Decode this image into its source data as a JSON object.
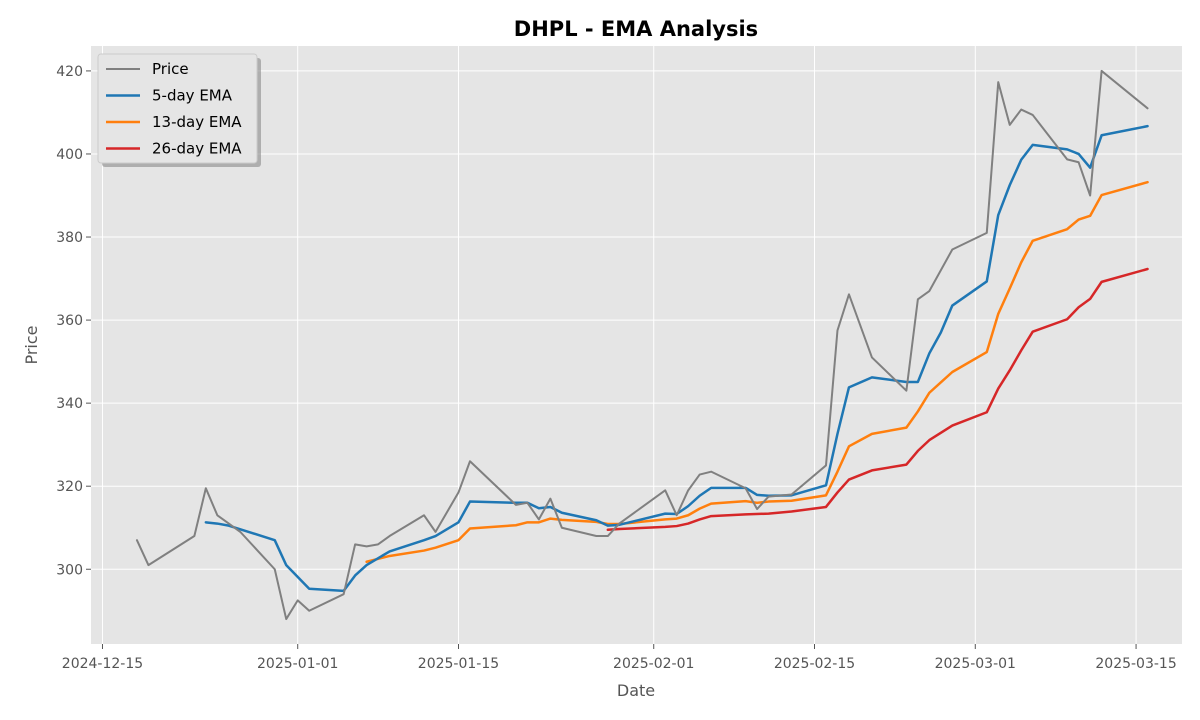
{
  "chart_data": {
    "type": "line",
    "title": "DHPL - EMA Analysis",
    "xlabel": "Date",
    "ylabel": "Price",
    "x_type": "date",
    "xlim": [
      "2024-12-14",
      "2025-03-19"
    ],
    "ylim": [
      282,
      426
    ],
    "x_ticks": [
      "2024-12-15",
      "2025-01-01",
      "2025-01-15",
      "2025-02-01",
      "2025-02-15",
      "2025-03-01",
      "2025-03-15"
    ],
    "y_ticks": [
      300,
      320,
      340,
      360,
      380,
      400,
      420
    ],
    "grid": true,
    "legend_position": "top-left",
    "series": [
      {
        "name": "Price",
        "color": "#808080",
        "points": [
          [
            "2024-12-18",
            307.0
          ],
          [
            "2024-12-19",
            301.0
          ],
          [
            "2024-12-23",
            308.0
          ],
          [
            "2024-12-24",
            319.5
          ],
          [
            "2024-12-25",
            313.0
          ],
          [
            "2024-12-26",
            311.0
          ],
          [
            "2024-12-27",
            309.0
          ],
          [
            "2024-12-30",
            300.0
          ],
          [
            "2024-12-31",
            288.0
          ],
          [
            "2025-01-01",
            292.5
          ],
          [
            "2025-01-02",
            290.0
          ],
          [
            "2025-01-05",
            294.0
          ],
          [
            "2025-01-06",
            306.0
          ],
          [
            "2025-01-07",
            305.5
          ],
          [
            "2025-01-08",
            306.0
          ],
          [
            "2025-01-09",
            308.0
          ],
          [
            "2025-01-12",
            313.0
          ],
          [
            "2025-01-13",
            309.0
          ],
          [
            "2025-01-15",
            318.5
          ],
          [
            "2025-01-16",
            326.0
          ],
          [
            "2025-01-20",
            315.5
          ],
          [
            "2025-01-21",
            316.0
          ],
          [
            "2025-01-22",
            312.0
          ],
          [
            "2025-01-23",
            317.0
          ],
          [
            "2025-01-24",
            310.0
          ],
          [
            "2025-01-27",
            308.0
          ],
          [
            "2025-01-28",
            308.0
          ],
          [
            "2025-01-29",
            311.0
          ],
          [
            "2025-02-02",
            319.0
          ],
          [
            "2025-02-03",
            313.0
          ],
          [
            "2025-02-04",
            319.0
          ],
          [
            "2025-02-05",
            322.8
          ],
          [
            "2025-02-06",
            323.5
          ],
          [
            "2025-02-09",
            319.5
          ],
          [
            "2025-02-10",
            314.5
          ],
          [
            "2025-02-11",
            317.5
          ],
          [
            "2025-02-13",
            318.0
          ],
          [
            "2025-02-16",
            325.0
          ],
          [
            "2025-02-17",
            357.5
          ],
          [
            "2025-02-18",
            366.2
          ],
          [
            "2025-02-20",
            351.0
          ],
          [
            "2025-02-23",
            343.0
          ],
          [
            "2025-02-24",
            365.0
          ],
          [
            "2025-02-25",
            367.0
          ],
          [
            "2025-02-27",
            377.0
          ],
          [
            "2025-03-02",
            381.0
          ],
          [
            "2025-03-03",
            417.3
          ],
          [
            "2025-03-04",
            407.0
          ],
          [
            "2025-03-05",
            410.7
          ],
          [
            "2025-03-06",
            409.4
          ],
          [
            "2025-03-09",
            398.7
          ],
          [
            "2025-03-10",
            398.0
          ],
          [
            "2025-03-11",
            390.0
          ],
          [
            "2025-03-12",
            420.0
          ],
          [
            "2025-03-16",
            411.0
          ]
        ]
      },
      {
        "name": "5-day EMA",
        "color": "#1f77b4",
        "points": [
          [
            "2024-12-24",
            311.3
          ],
          [
            "2024-12-25",
            311.0
          ],
          [
            "2024-12-26",
            310.5
          ],
          [
            "2024-12-30",
            307.0
          ],
          [
            "2024-12-31",
            301.0
          ],
          [
            "2025-01-02",
            295.3
          ],
          [
            "2025-01-05",
            294.8
          ],
          [
            "2025-01-06",
            298.5
          ],
          [
            "2025-01-07",
            301.0
          ],
          [
            "2025-01-09",
            304.3
          ],
          [
            "2025-01-12",
            307.0
          ],
          [
            "2025-01-13",
            308.0
          ],
          [
            "2025-01-15",
            311.3
          ],
          [
            "2025-01-16",
            316.3
          ],
          [
            "2025-01-20",
            316.0
          ],
          [
            "2025-01-21",
            316.0
          ],
          [
            "2025-01-22",
            314.7
          ],
          [
            "2025-01-23",
            315.0
          ],
          [
            "2025-01-24",
            313.6
          ],
          [
            "2025-01-27",
            311.8
          ],
          [
            "2025-01-28",
            310.5
          ],
          [
            "2025-01-29",
            310.7
          ],
          [
            "2025-02-02",
            313.4
          ],
          [
            "2025-02-03",
            313.3
          ],
          [
            "2025-02-04",
            315.2
          ],
          [
            "2025-02-05",
            317.7
          ],
          [
            "2025-02-06",
            319.6
          ],
          [
            "2025-02-09",
            319.6
          ],
          [
            "2025-02-10",
            317.9
          ],
          [
            "2025-02-11",
            317.7
          ],
          [
            "2025-02-13",
            317.8
          ],
          [
            "2025-02-16",
            320.2
          ],
          [
            "2025-02-17",
            332.6
          ],
          [
            "2025-02-18",
            343.8
          ],
          [
            "2025-02-20",
            346.2
          ],
          [
            "2025-02-23",
            345.1
          ],
          [
            "2025-02-24",
            345.1
          ],
          [
            "2025-02-25",
            352.0
          ],
          [
            "2025-02-26",
            357.0
          ],
          [
            "2025-02-27",
            363.5
          ],
          [
            "2025-03-02",
            369.3
          ],
          [
            "2025-03-03",
            385.3
          ],
          [
            "2025-03-04",
            392.5
          ],
          [
            "2025-03-05",
            398.6
          ],
          [
            "2025-03-06",
            402.2
          ],
          [
            "2025-03-09",
            401.1
          ],
          [
            "2025-03-10",
            400.0
          ],
          [
            "2025-03-11",
            396.7
          ],
          [
            "2025-03-12",
            404.5
          ],
          [
            "2025-03-16",
            406.7
          ]
        ]
      },
      {
        "name": "13-day EMA",
        "color": "#ff7f0e",
        "points": [
          [
            "2025-01-07",
            301.8
          ],
          [
            "2025-01-09",
            303.2
          ],
          [
            "2025-01-12",
            304.5
          ],
          [
            "2025-01-13",
            305.2
          ],
          [
            "2025-01-15",
            307.0
          ],
          [
            "2025-01-16",
            309.8
          ],
          [
            "2025-01-20",
            310.6
          ],
          [
            "2025-01-21",
            311.3
          ],
          [
            "2025-01-22",
            311.3
          ],
          [
            "2025-01-23",
            312.2
          ],
          [
            "2025-01-24",
            311.9
          ],
          [
            "2025-01-27",
            311.4
          ],
          [
            "2025-01-28",
            310.9
          ],
          [
            "2025-01-29",
            310.9
          ],
          [
            "2025-02-02",
            312.0
          ],
          [
            "2025-02-03",
            312.2
          ],
          [
            "2025-02-04",
            313.0
          ],
          [
            "2025-02-05",
            314.6
          ],
          [
            "2025-02-06",
            315.8
          ],
          [
            "2025-02-09",
            316.4
          ],
          [
            "2025-02-10",
            316.0
          ],
          [
            "2025-02-11",
            316.3
          ],
          [
            "2025-02-13",
            316.5
          ],
          [
            "2025-02-16",
            317.8
          ],
          [
            "2025-02-17",
            323.5
          ],
          [
            "2025-02-18",
            329.6
          ],
          [
            "2025-02-20",
            332.6
          ],
          [
            "2025-02-23",
            334.1
          ],
          [
            "2025-02-24",
            338.0
          ],
          [
            "2025-02-25",
            342.5
          ],
          [
            "2025-02-27",
            347.5
          ],
          [
            "2025-03-02",
            352.3
          ],
          [
            "2025-03-03",
            361.5
          ],
          [
            "2025-03-04",
            367.6
          ],
          [
            "2025-03-05",
            373.9
          ],
          [
            "2025-03-06",
            379.1
          ],
          [
            "2025-03-09",
            381.9
          ],
          [
            "2025-03-10",
            384.2
          ],
          [
            "2025-03-11",
            385.1
          ],
          [
            "2025-03-12",
            390.1
          ],
          [
            "2025-03-16",
            393.2
          ]
        ]
      },
      {
        "name": "26-day EMA",
        "color": "#d62728",
        "points": [
          [
            "2025-01-28",
            309.5
          ],
          [
            "2025-01-29",
            309.7
          ],
          [
            "2025-02-02",
            310.2
          ],
          [
            "2025-02-03",
            310.4
          ],
          [
            "2025-02-04",
            311.0
          ],
          [
            "2025-02-05",
            312.0
          ],
          [
            "2025-02-06",
            312.8
          ],
          [
            "2025-02-09",
            313.2
          ],
          [
            "2025-02-11",
            313.4
          ],
          [
            "2025-02-13",
            313.9
          ],
          [
            "2025-02-16",
            315.0
          ],
          [
            "2025-02-17",
            318.5
          ],
          [
            "2025-02-18",
            321.6
          ],
          [
            "2025-02-20",
            323.8
          ],
          [
            "2025-02-23",
            325.2
          ],
          [
            "2025-02-24",
            328.5
          ],
          [
            "2025-02-25",
            331.1
          ],
          [
            "2025-02-27",
            334.6
          ],
          [
            "2025-03-02",
            337.8
          ],
          [
            "2025-03-03",
            343.5
          ],
          [
            "2025-03-04",
            347.9
          ],
          [
            "2025-03-05",
            352.7
          ],
          [
            "2025-03-06",
            357.2
          ],
          [
            "2025-03-09",
            360.2
          ],
          [
            "2025-03-10",
            363.1
          ],
          [
            "2025-03-11",
            365.1
          ],
          [
            "2025-03-12",
            369.2
          ],
          [
            "2025-03-16",
            372.3
          ]
        ]
      }
    ]
  }
}
